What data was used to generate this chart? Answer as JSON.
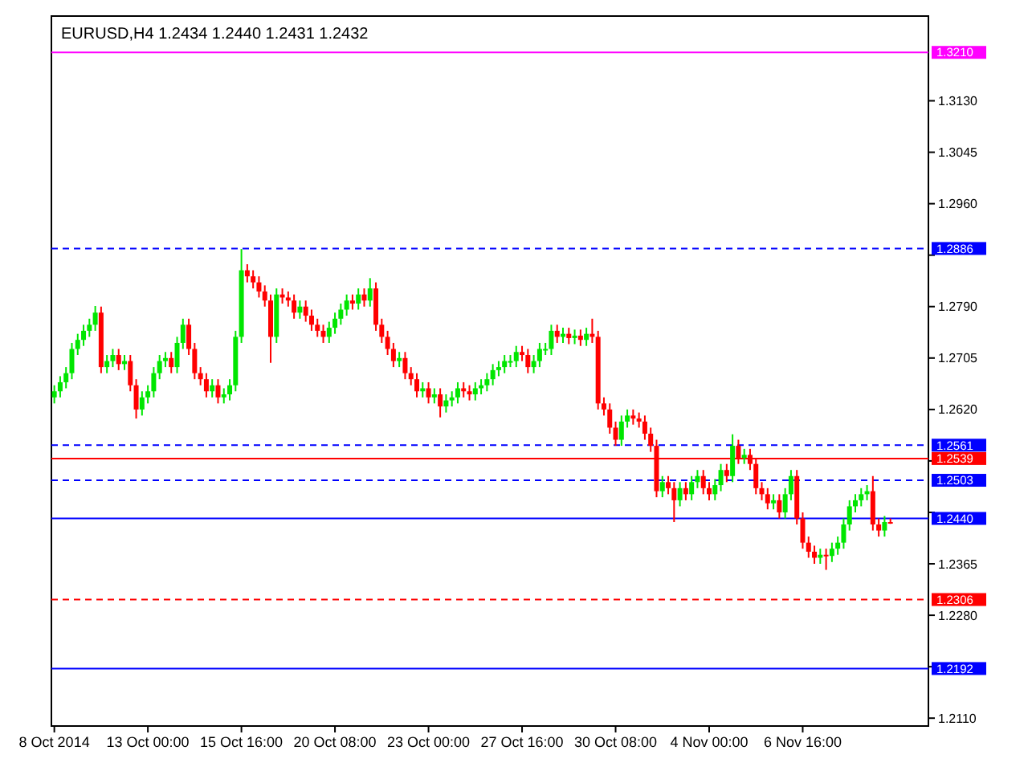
{
  "chart_data": {
    "type": "candlestick",
    "title": "EURUSD,H4  1.2434 1.2440 1.2431 1.2432",
    "categories": [
      "8 Oct 2014",
      null,
      null,
      null,
      null,
      null,
      null,
      null,
      null,
      null,
      null,
      null,
      null,
      null,
      null,
      null,
      "13 Oct 00:00",
      null,
      null,
      null,
      null,
      null,
      null,
      null,
      null,
      null,
      null,
      null,
      null,
      null,
      null,
      null,
      "15 Oct 16:00",
      null,
      null,
      null,
      null,
      null,
      null,
      null,
      null,
      null,
      null,
      null,
      null,
      null,
      null,
      null,
      "20 Oct 08:00",
      null,
      null,
      null,
      null,
      null,
      null,
      null,
      null,
      null,
      null,
      null,
      null,
      null,
      null,
      null,
      "23 Oct 00:00",
      null,
      null,
      null,
      null,
      null,
      null,
      null,
      null,
      null,
      null,
      null,
      null,
      null,
      null,
      null,
      "27 Oct 16:00",
      null,
      null,
      null,
      null,
      null,
      null,
      null,
      null,
      null,
      null,
      null,
      null,
      null,
      null,
      null,
      "30 Oct 08:00",
      null,
      null,
      null,
      null,
      null,
      null,
      null,
      null,
      null,
      null,
      null,
      null,
      null,
      null,
      null,
      "4 Nov 00:00",
      null,
      null,
      null,
      null,
      null,
      null,
      null,
      null,
      null,
      null,
      null,
      null,
      null,
      null,
      null,
      "6 Nov 16:00",
      null,
      null,
      null,
      null,
      null,
      null,
      null,
      null,
      null,
      null,
      null,
      null,
      null,
      null,
      null,
      null,
      null,
      null,
      null,
      null,
      null
    ],
    "ohlc": [
      [
        1.264,
        1.266,
        1.263,
        1.265
      ],
      [
        1.265,
        1.2675,
        1.264,
        1.2665
      ],
      [
        1.2665,
        1.269,
        1.2655,
        1.268
      ],
      [
        1.268,
        1.273,
        1.267,
        1.272
      ],
      [
        1.272,
        1.2745,
        1.271,
        1.2735
      ],
      [
        1.2735,
        1.276,
        1.2725,
        1.275
      ],
      [
        1.275,
        1.277,
        1.274,
        1.276
      ],
      [
        1.276,
        1.2791,
        1.275,
        1.278
      ],
      [
        1.278,
        1.279,
        1.268,
        1.269
      ],
      [
        1.269,
        1.271,
        1.268,
        1.27
      ],
      [
        1.27,
        1.272,
        1.269,
        1.271
      ],
      [
        1.271,
        1.272,
        1.2685,
        1.2695
      ],
      [
        1.2695,
        1.271,
        1.2685,
        1.27
      ],
      [
        1.27,
        1.271,
        1.265,
        1.266
      ],
      [
        1.266,
        1.267,
        1.2605,
        1.262
      ],
      [
        1.262,
        1.265,
        1.261,
        1.264
      ],
      [
        1.264,
        1.266,
        1.263,
        1.265
      ],
      [
        1.265,
        1.269,
        1.264,
        1.268
      ],
      [
        1.268,
        1.271,
        1.267,
        1.27
      ],
      [
        1.27,
        1.2715,
        1.269,
        1.2705
      ],
      [
        1.2705,
        1.2715,
        1.268,
        1.269
      ],
      [
        1.269,
        1.274,
        1.268,
        1.273
      ],
      [
        1.273,
        1.277,
        1.272,
        1.276
      ],
      [
        1.276,
        1.277,
        1.271,
        1.272
      ],
      [
        1.272,
        1.273,
        1.267,
        1.268
      ],
      [
        1.268,
        1.269,
        1.266,
        1.267
      ],
      [
        1.267,
        1.268,
        1.264,
        1.265
      ],
      [
        1.265,
        1.267,
        1.264,
        1.266
      ],
      [
        1.266,
        1.267,
        1.263,
        1.264
      ],
      [
        1.264,
        1.2655,
        1.263,
        1.2645
      ],
      [
        1.2645,
        1.267,
        1.2635,
        1.266
      ],
      [
        1.266,
        1.275,
        1.265,
        1.274
      ],
      [
        1.274,
        1.2885,
        1.273,
        1.285
      ],
      [
        1.285,
        1.286,
        1.283,
        1.284
      ],
      [
        1.284,
        1.285,
        1.282,
        1.283
      ],
      [
        1.283,
        1.284,
        1.2805,
        1.2815
      ],
      [
        1.2815,
        1.2825,
        1.279,
        1.28
      ],
      [
        1.28,
        1.281,
        1.2697,
        1.274
      ],
      [
        1.274,
        1.282,
        1.273,
        1.281
      ],
      [
        1.281,
        1.282,
        1.2795,
        1.2805
      ],
      [
        1.2805,
        1.2815,
        1.279,
        1.28
      ],
      [
        1.28,
        1.281,
        1.277,
        1.278
      ],
      [
        1.278,
        1.28,
        1.277,
        1.279
      ],
      [
        1.279,
        1.28,
        1.2765,
        1.2775
      ],
      [
        1.2775,
        1.2785,
        1.275,
        1.276
      ],
      [
        1.276,
        1.277,
        1.274,
        1.275
      ],
      [
        1.275,
        1.276,
        1.273,
        1.274
      ],
      [
        1.274,
        1.2765,
        1.273,
        1.2755
      ],
      [
        1.2755,
        1.278,
        1.2745,
        1.277
      ],
      [
        1.277,
        1.2795,
        1.276,
        1.2785
      ],
      [
        1.2785,
        1.281,
        1.2775,
        1.28
      ],
      [
        1.28,
        1.281,
        1.2785,
        1.2795
      ],
      [
        1.2795,
        1.282,
        1.2785,
        1.281
      ],
      [
        1.281,
        1.282,
        1.279,
        1.28
      ],
      [
        1.28,
        1.2837,
        1.279,
        1.282
      ],
      [
        1.282,
        1.283,
        1.275,
        1.276
      ],
      [
        1.276,
        1.277,
        1.273,
        1.274
      ],
      [
        1.274,
        1.275,
        1.271,
        1.272
      ],
      [
        1.272,
        1.273,
        1.269,
        1.27
      ],
      [
        1.27,
        1.2715,
        1.269,
        1.2705
      ],
      [
        1.2705,
        1.2715,
        1.267,
        1.268
      ],
      [
        1.268,
        1.269,
        1.266,
        1.267
      ],
      [
        1.267,
        1.268,
        1.264,
        1.265
      ],
      [
        1.265,
        1.2665,
        1.264,
        1.2655
      ],
      [
        1.2655,
        1.2665,
        1.263,
        1.264
      ],
      [
        1.264,
        1.2655,
        1.263,
        1.2645
      ],
      [
        1.2645,
        1.2655,
        1.2607,
        1.2625
      ],
      [
        1.2625,
        1.2645,
        1.2615,
        1.2635
      ],
      [
        1.2635,
        1.265,
        1.2625,
        1.264
      ],
      [
        1.264,
        1.2665,
        1.263,
        1.2655
      ],
      [
        1.2655,
        1.2665,
        1.264,
        1.265
      ],
      [
        1.265,
        1.266,
        1.2635,
        1.2645
      ],
      [
        1.2645,
        1.2665,
        1.2635,
        1.2655
      ],
      [
        1.2655,
        1.267,
        1.2645,
        1.266
      ],
      [
        1.266,
        1.268,
        1.265,
        1.267
      ],
      [
        1.267,
        1.2695,
        1.266,
        1.2685
      ],
      [
        1.2685,
        1.27,
        1.2675,
        1.269
      ],
      [
        1.269,
        1.271,
        1.268,
        1.27
      ],
      [
        1.27,
        1.271,
        1.269,
        1.27
      ],
      [
        1.27,
        1.2725,
        1.269,
        1.2715
      ],
      [
        1.2715,
        1.2725,
        1.27,
        1.271
      ],
      [
        1.271,
        1.272,
        1.268,
        1.269
      ],
      [
        1.269,
        1.271,
        1.268,
        1.27
      ],
      [
        1.27,
        1.273,
        1.269,
        1.272
      ],
      [
        1.272,
        1.273,
        1.271,
        1.272
      ],
      [
        1.272,
        1.276,
        1.271,
        1.275
      ],
      [
        1.275,
        1.276,
        1.273,
        1.274
      ],
      [
        1.274,
        1.2755,
        1.273,
        1.2745
      ],
      [
        1.2745,
        1.2755,
        1.2728,
        1.2738
      ],
      [
        1.2738,
        1.2752,
        1.2728,
        1.2742
      ],
      [
        1.2742,
        1.2752,
        1.2725,
        1.2735
      ],
      [
        1.2735,
        1.2755,
        1.2725,
        1.2745
      ],
      [
        1.2745,
        1.277,
        1.273,
        1.274
      ],
      [
        1.274,
        1.275,
        1.262,
        1.263
      ],
      [
        1.263,
        1.264,
        1.261,
        1.262
      ],
      [
        1.262,
        1.263,
        1.258,
        1.259
      ],
      [
        1.259,
        1.26,
        1.256,
        1.257
      ],
      [
        1.257,
        1.261,
        1.256,
        1.26
      ],
      [
        1.26,
        1.262,
        1.259,
        1.261
      ],
      [
        1.261,
        1.262,
        1.2595,
        1.2605
      ],
      [
        1.2605,
        1.2615,
        1.259,
        1.26
      ],
      [
        1.26,
        1.261,
        1.257,
        1.258
      ],
      [
        1.258,
        1.259,
        1.255,
        1.256
      ],
      [
        1.256,
        1.257,
        1.2475,
        1.2485
      ],
      [
        1.2485,
        1.251,
        1.2475,
        1.25
      ],
      [
        1.25,
        1.251,
        1.248,
        1.249
      ],
      [
        1.249,
        1.25,
        1.2434,
        1.247
      ],
      [
        1.247,
        1.25,
        1.246,
        1.249
      ],
      [
        1.249,
        1.25,
        1.247,
        1.248
      ],
      [
        1.248,
        1.251,
        1.247,
        1.25
      ],
      [
        1.25,
        1.252,
        1.249,
        1.251
      ],
      [
        1.251,
        1.252,
        1.248,
        1.249
      ],
      [
        1.249,
        1.25,
        1.247,
        1.248
      ],
      [
        1.248,
        1.2505,
        1.247,
        1.2495
      ],
      [
        1.2495,
        1.253,
        1.2485,
        1.252
      ],
      [
        1.252,
        1.253,
        1.25,
        1.251
      ],
      [
        1.251,
        1.2579,
        1.25,
        1.256
      ],
      [
        1.256,
        1.257,
        1.253,
        1.254
      ],
      [
        1.254,
        1.2555,
        1.253,
        1.2545
      ],
      [
        1.2545,
        1.2555,
        1.252,
        1.253
      ],
      [
        1.253,
        1.254,
        1.248,
        1.249
      ],
      [
        1.249,
        1.25,
        1.247,
        1.248
      ],
      [
        1.248,
        1.249,
        1.2455,
        1.2465
      ],
      [
        1.2465,
        1.248,
        1.2455,
        1.247
      ],
      [
        1.247,
        1.248,
        1.244,
        1.245
      ],
      [
        1.245,
        1.249,
        1.244,
        1.248
      ],
      [
        1.248,
        1.252,
        1.247,
        1.251
      ],
      [
        1.251,
        1.252,
        1.243,
        1.244
      ],
      [
        1.244,
        1.245,
        1.239,
        1.24
      ],
      [
        1.24,
        1.241,
        1.2375,
        1.2385
      ],
      [
        1.2385,
        1.2395,
        1.2365,
        1.2375
      ],
      [
        1.2375,
        1.239,
        1.2365,
        1.238
      ],
      [
        1.238,
        1.239,
        1.2355,
        1.2378
      ],
      [
        1.2378,
        1.24,
        1.2368,
        1.239
      ],
      [
        1.239,
        1.241,
        1.238,
        1.24
      ],
      [
        1.24,
        1.244,
        1.239,
        1.243
      ],
      [
        1.243,
        1.247,
        1.242,
        1.246
      ],
      [
        1.246,
        1.248,
        1.245,
        1.247
      ],
      [
        1.247,
        1.249,
        1.246,
        1.248
      ],
      [
        1.248,
        1.2495,
        1.247,
        1.2485
      ],
      [
        1.2485,
        1.251,
        1.242,
        1.243
      ],
      [
        1.243,
        1.244,
        1.241,
        1.242
      ],
      [
        1.242,
        1.2444,
        1.241,
        1.2434
      ],
      [
        1.2434,
        1.244,
        1.2431,
        1.2432
      ],
      null,
      null,
      null,
      null,
      null,
      null
    ],
    "ylim": [
      1.2097,
      1.327
    ],
    "yticks": [
      {
        "value": 1.211,
        "label": "1.2110"
      },
      {
        "value": 1.2195,
        "label": null
      },
      {
        "value": 1.228,
        "label": "1.2280"
      },
      {
        "value": 1.2365,
        "label": "1.2365"
      },
      {
        "value": 1.245,
        "label": null
      },
      {
        "value": 1.2535,
        "label": null
      },
      {
        "value": 1.262,
        "label": "1.2620"
      },
      {
        "value": 1.2705,
        "label": "1.2705"
      },
      {
        "value": 1.279,
        "label": "1.2790"
      },
      {
        "value": 1.2875,
        "label": null
      },
      {
        "value": 1.296,
        "label": "1.2960"
      },
      {
        "value": 1.3045,
        "label": "1.3045"
      },
      {
        "value": 1.313,
        "label": "1.3130"
      }
    ],
    "ref_lines": [
      {
        "axis": "y",
        "value": 1.321,
        "label": "1.3210",
        "color": "#ff00ff",
        "line_style": "solid"
      },
      {
        "axis": "y",
        "value": 1.2886,
        "label": "1.2886",
        "color": "#0000ff",
        "line_style": "dashed"
      },
      {
        "axis": "y",
        "value": 1.2561,
        "label": "1.2561",
        "color": "#0000ff",
        "line_style": "dashed"
      },
      {
        "axis": "y",
        "value": 1.2539,
        "label": "1.2539",
        "color": "#ff0000",
        "line_style": "solid"
      },
      {
        "axis": "y",
        "value": 1.2503,
        "label": "1.2503",
        "color": "#0000ff",
        "line_style": "dashed"
      },
      {
        "axis": "y",
        "value": 1.244,
        "label": "1.2440",
        "color": "#0000ff",
        "line_style": "solid"
      },
      {
        "axis": "y",
        "value": 1.2306,
        "label": "1.2306",
        "color": "#ff0000",
        "line_style": "dashed"
      },
      {
        "axis": "y",
        "value": 1.2192,
        "label": "1.2192",
        "color": "#0000ff",
        "line_style": "solid"
      }
    ],
    "grid": false
  }
}
